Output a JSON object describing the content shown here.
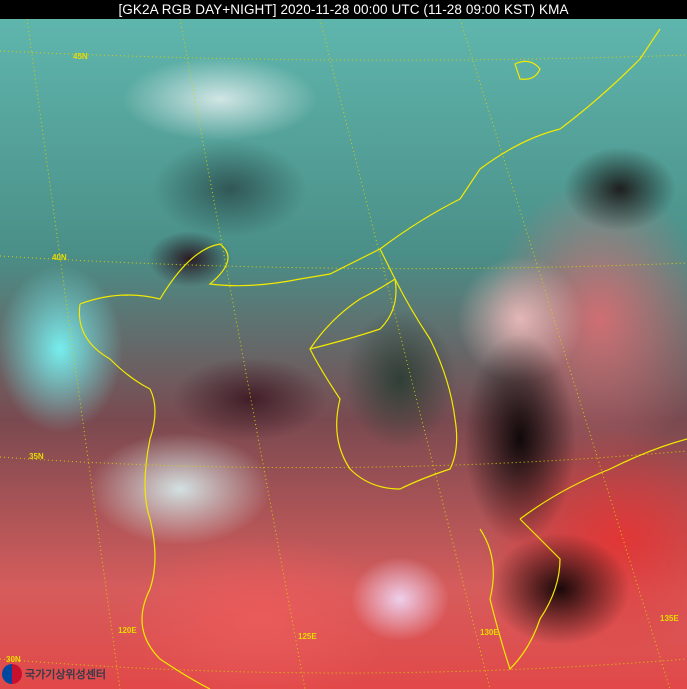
{
  "title": "[GK2A RGB DAY+NIGHT] 2020-11-28 00:00 UTC (11-28 09:00 KST) KMA",
  "graticule_labels": {
    "lat": [
      "45N",
      "40N",
      "35N",
      "30N"
    ],
    "lon": [
      "120E",
      "125E",
      "130E",
      "135E"
    ]
  },
  "logo": {
    "text": "국가기상위성센터",
    "icon": "kma-taegeuk-logo"
  },
  "colors": {
    "coastline": "#f2ea00",
    "title_bar": "#000000",
    "title_text": "#ffffff"
  }
}
